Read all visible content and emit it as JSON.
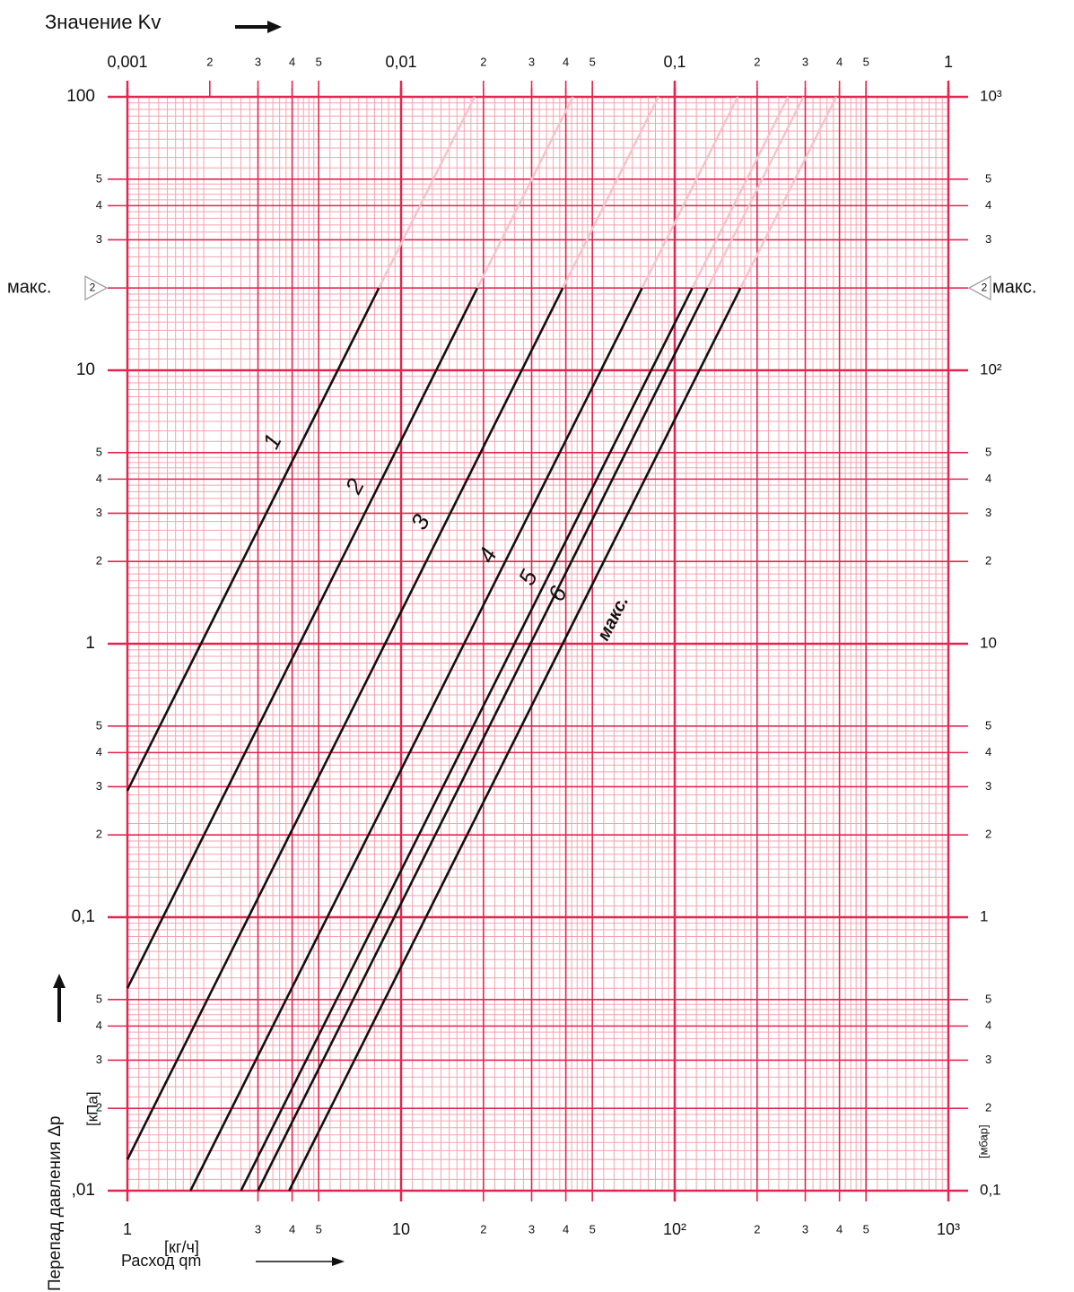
{
  "chart_data": {
    "type": "line",
    "title": "Значение Kv",
    "x_label": "Расход qm",
    "x_unit": "[кг/ч]",
    "y_label": "Перепад давления Δp",
    "y_unit": "[кПа]",
    "y2_unit": "[мбар]",
    "max_label": "макс.",
    "max_dp": 20,
    "log_x": true,
    "log_y": true,
    "grid": true,
    "minor_grid": true,
    "grid_color": "#e3264f",
    "minor_grid_color": "#f5a3b1",
    "extension_color": "#f7c3cb",
    "xlim": [
      1,
      1000
    ],
    "xticks": [
      1,
      3,
      4,
      5,
      10,
      {
        "value": 20,
        "label": "2"
      },
      {
        "value": 30,
        "label": "3"
      },
      {
        "value": 40,
        "label": "4"
      },
      {
        "value": 50,
        "label": "5"
      },
      {
        "value": 100,
        "label": "10²"
      },
      {
        "value": 200,
        "label": "2"
      },
      {
        "value": 300,
        "label": "3"
      },
      {
        "value": 400,
        "label": "4"
      },
      {
        "value": 500,
        "label": "5"
      },
      {
        "value": 1000,
        "label": "10³"
      }
    ],
    "x2lim": [
      0.001,
      1
    ],
    "x2ticks": [
      {
        "value": 0.001,
        "label": "0,001"
      },
      {
        "value": 0.002,
        "label": "2"
      },
      {
        "value": 0.003,
        "label": "3"
      },
      {
        "value": 0.004,
        "label": "4"
      },
      {
        "value": 0.005,
        "label": "5"
      },
      {
        "value": 0.01,
        "label": "0,01"
      },
      {
        "value": 0.02,
        "label": "2"
      },
      {
        "value": 0.03,
        "label": "3"
      },
      {
        "value": 0.04,
        "label": "4"
      },
      {
        "value": 0.05,
        "label": "5"
      },
      {
        "value": 0.1,
        "label": "0,1"
      },
      {
        "value": 0.2,
        "label": "2"
      },
      {
        "value": 0.3,
        "label": "3"
      },
      {
        "value": 0.4,
        "label": "4"
      },
      {
        "value": 0.5,
        "label": "5"
      },
      1
    ],
    "ylim": [
      0.01,
      100
    ],
    "yticks": [
      {
        "value": 0.01,
        "label": ",01"
      },
      {
        "value": 0.02,
        "label": "2"
      },
      {
        "value": 0.03,
        "label": "3"
      },
      {
        "value": 0.04,
        "label": "4"
      },
      {
        "value": 0.05,
        "label": "5"
      },
      {
        "value": 0.1,
        "label": "0,1"
      },
      {
        "value": 0.2,
        "label": "2"
      },
      {
        "value": 0.3,
        "label": "3"
      },
      {
        "value": 0.4,
        "label": "4"
      },
      {
        "value": 0.5,
        "label": "5"
      },
      1,
      2,
      3,
      4,
      5,
      10,
      {
        "value": 20,
        "label": "2"
      },
      {
        "value": 30,
        "label": "3"
      },
      {
        "value": 40,
        "label": "4"
      },
      {
        "value": 50,
        "label": "5"
      },
      100
    ],
    "y2lim": [
      0.1,
      1000
    ],
    "y2ticks": [
      {
        "value": 0.1,
        "label": "0,1"
      },
      {
        "value": 0.2,
        "label": "2"
      },
      {
        "value": 0.3,
        "label": "3"
      },
      {
        "value": 0.4,
        "label": "4"
      },
      {
        "value": 0.5,
        "label": "5"
      },
      1,
      2,
      3,
      4,
      5,
      10,
      {
        "value": 20,
        "label": "2"
      },
      {
        "value": 30,
        "label": "3"
      },
      {
        "value": 40,
        "label": "4"
      },
      {
        "value": 50,
        "label": "5"
      },
      {
        "value": 100,
        "label": "10²"
      },
      {
        "value": 200,
        "label": "2"
      },
      {
        "value": 300,
        "label": "3"
      },
      {
        "value": 400,
        "label": "4"
      },
      {
        "value": 500,
        "label": "5"
      },
      {
        "value": 1000,
        "label": "10³"
      }
    ],
    "series": [
      {
        "name": "1",
        "color": "#111111",
        "x": [
          1,
          8.3
        ],
        "values": [
          0.29,
          20
        ]
      },
      {
        "name": "2",
        "color": "#111111",
        "x": [
          1,
          19
        ],
        "values": [
          0.055,
          20
        ]
      },
      {
        "name": "3",
        "color": "#111111",
        "x": [
          1,
          39
        ],
        "values": [
          0.013,
          20
        ]
      },
      {
        "name": "4",
        "color": "#111111",
        "x": [
          1.7,
          76
        ],
        "values": [
          0.01,
          20
        ]
      },
      {
        "name": "5",
        "color": "#111111",
        "x": [
          2.6,
          116
        ],
        "values": [
          0.01,
          20
        ]
      },
      {
        "name": "6",
        "color": "#111111",
        "x": [
          3,
          132
        ],
        "values": [
          0.01,
          20
        ]
      },
      {
        "name": "макс.",
        "color": "#111111",
        "x": [
          3.9,
          174
        ],
        "values": [
          0.01,
          20
        ]
      }
    ]
  }
}
